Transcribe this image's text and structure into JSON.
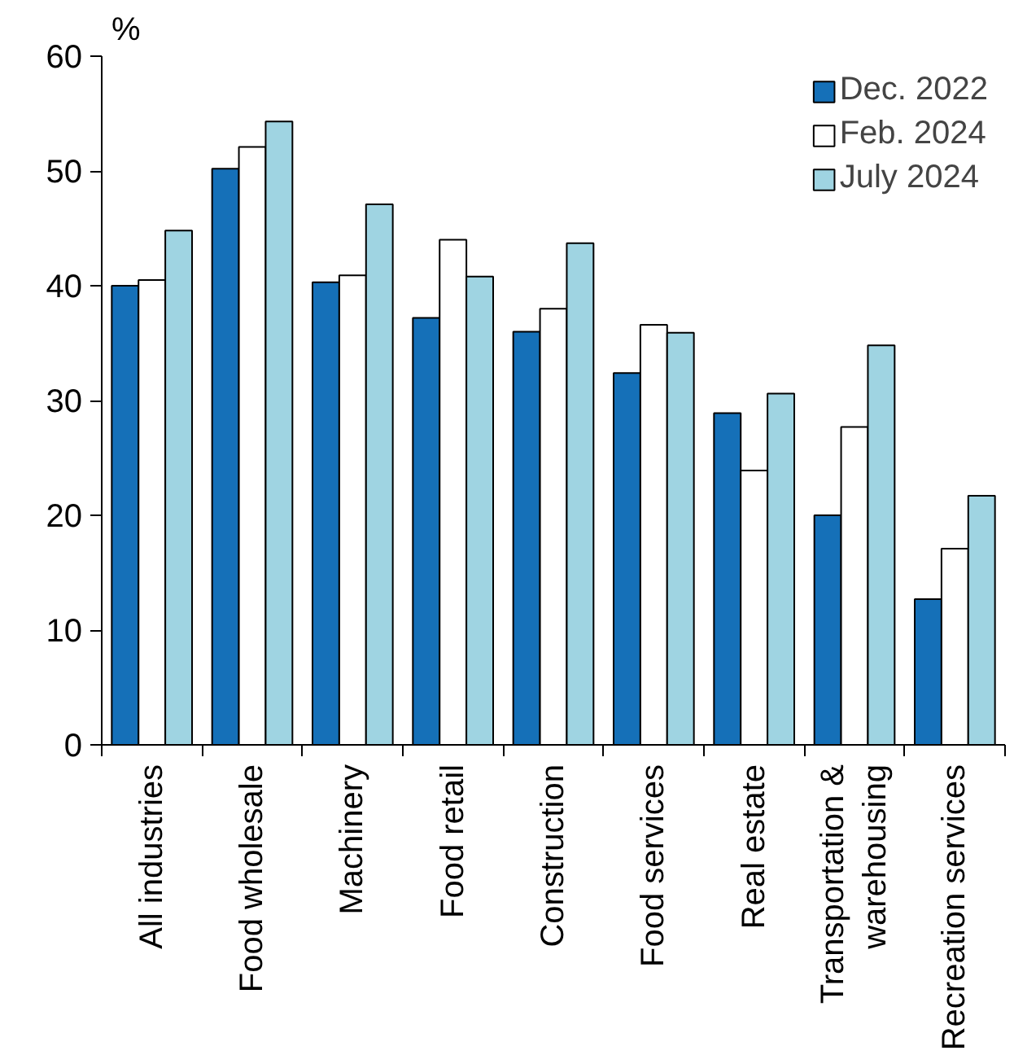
{
  "chart_data": {
    "type": "bar",
    "ylabel": "%",
    "categories": [
      "All industries",
      "Food wholesale",
      "Machinery",
      "Food retail",
      "Construction",
      "Food services",
      "Real estate",
      "Transportation & warehousing",
      "Recreation services"
    ],
    "series": [
      {
        "name": "Dec. 2022",
        "color": "#1570b8",
        "values": [
          40.0,
          50.2,
          40.3,
          37.2,
          36.0,
          32.4,
          28.9,
          20.0,
          12.7
        ]
      },
      {
        "name": "Feb. 2024",
        "color": "#ffffff",
        "values": [
          40.5,
          52.1,
          40.9,
          44.0,
          38.0,
          36.6,
          23.9,
          27.7,
          17.1
        ]
      },
      {
        "name": "July 2024",
        "color": "#9fd4e2",
        "values": [
          44.8,
          54.3,
          47.1,
          40.8,
          43.7,
          35.9,
          30.6,
          34.8,
          21.7
        ]
      }
    ],
    "ylim": [
      0,
      60
    ],
    "yticks": [
      0,
      10,
      20,
      30,
      40,
      50,
      60
    ],
    "grid": false,
    "legend": "top right"
  }
}
